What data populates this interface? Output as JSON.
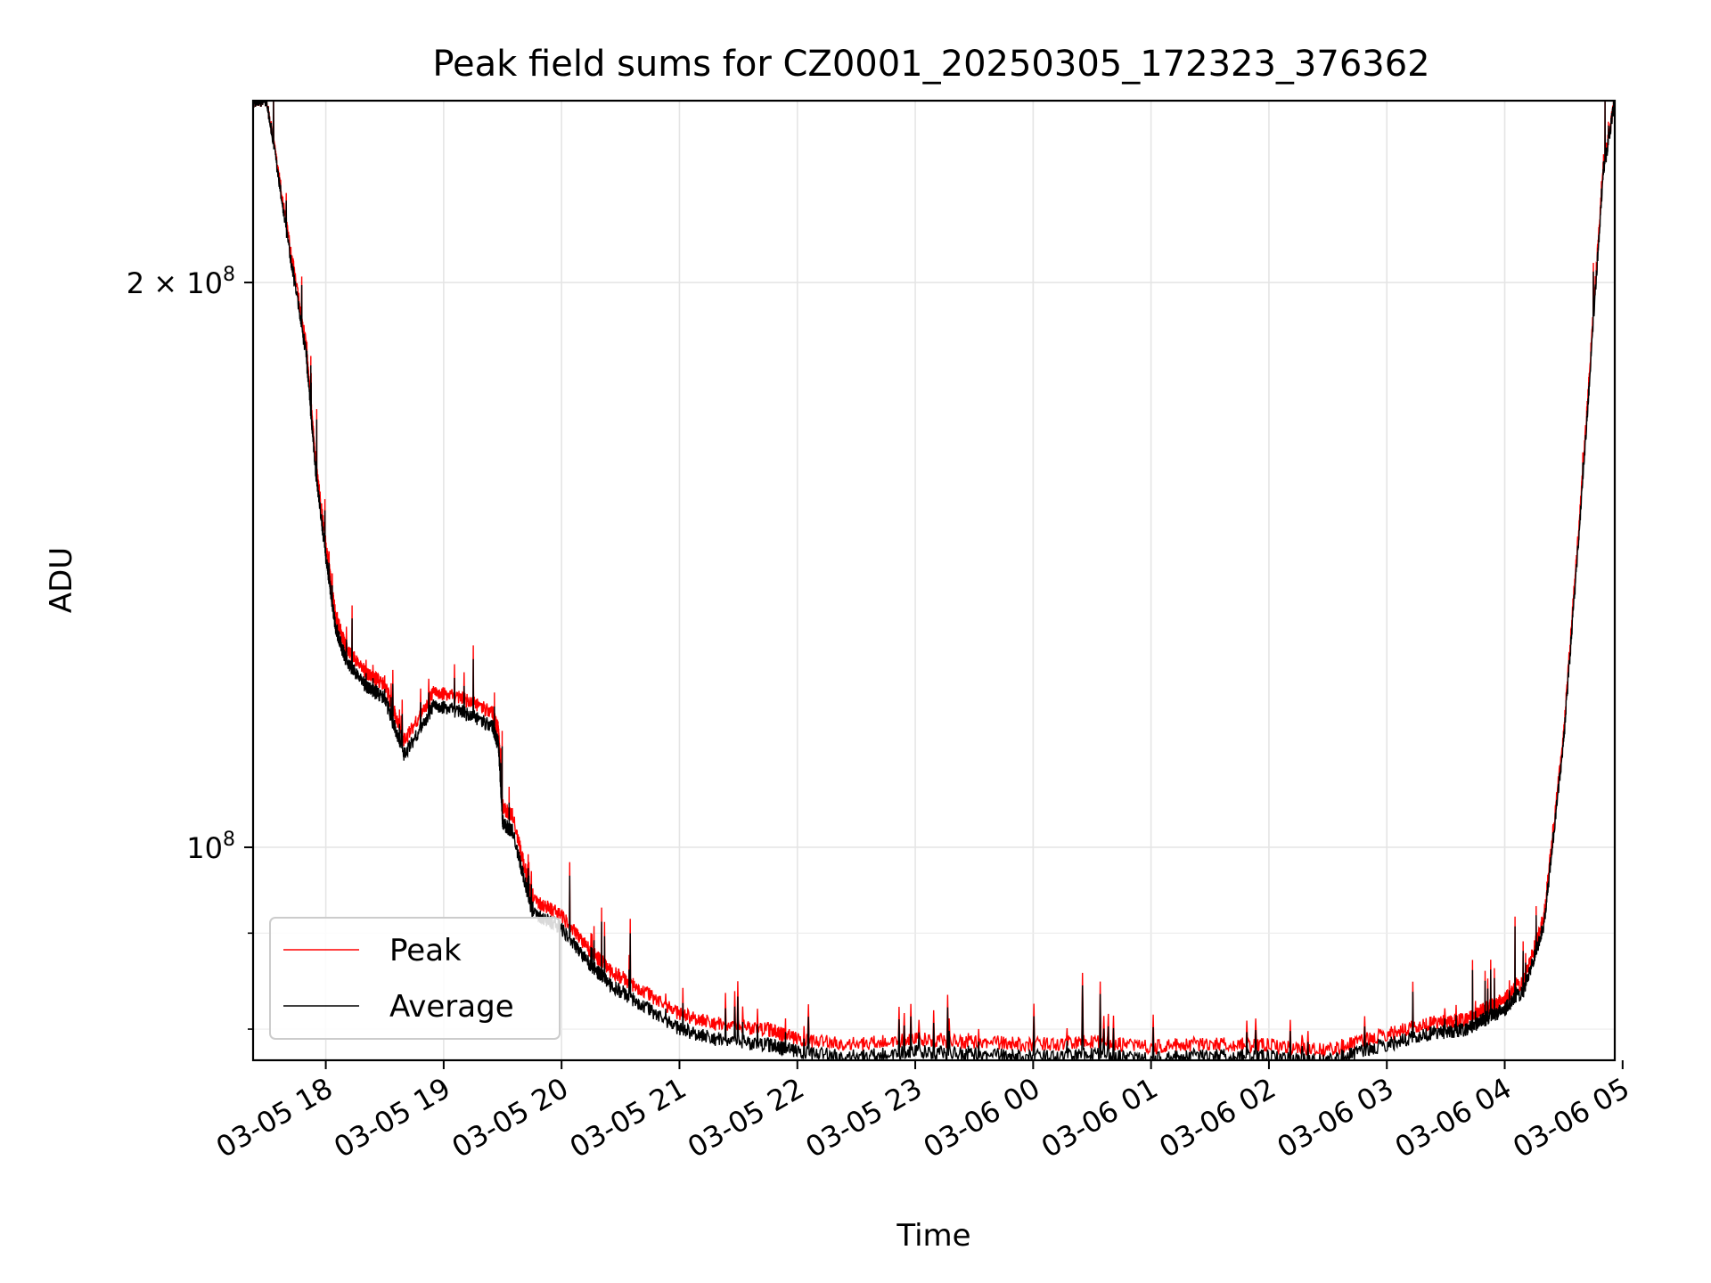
{
  "chart_data": {
    "type": "line",
    "title": "Peak field sums for CZ0001_20250305_172323_376362",
    "xlabel": "Time",
    "ylabel": "ADU",
    "y_scale": "log",
    "ylim": [
      77000000,
      250000000
    ],
    "xlim": [
      "2025-03-05 17:23",
      "2025-03-06 04:56"
    ],
    "x_tick_labels": [
      "03-05 18",
      "03-05 19",
      "03-05 20",
      "03-05 21",
      "03-05 22",
      "03-05 23",
      "03-06 00",
      "03-06 01",
      "03-06 02",
      "03-06 03",
      "03-06 04",
      "03-06 05"
    ],
    "x_tick_times": [
      "2025-03-05 18:00",
      "2025-03-05 19:00",
      "2025-03-05 20:00",
      "2025-03-05 21:00",
      "2025-03-05 22:00",
      "2025-03-05 23:00",
      "2025-03-06 00:00",
      "2025-03-06 01:00",
      "2025-03-06 02:00",
      "2025-03-06 03:00",
      "2025-03-06 04:00",
      "2025-03-06 05:00"
    ],
    "y_major_ticks": [
      {
        "value": 100000000,
        "label": "10^8",
        "mantissa": "10",
        "exp": "8"
      },
      {
        "value": 200000000,
        "label": "2×10^8",
        "mantissa": "2 × 10",
        "exp": "8"
      }
    ],
    "y_minor_ticks": [
      80000000,
      90000000
    ],
    "grid": true,
    "legend_position": "lower-left",
    "series": [
      {
        "name": "Peak",
        "color": "#ff0000",
        "x": [
          "2025-03-05 17:23",
          "2025-03-05 17:30",
          "2025-03-05 17:40",
          "2025-03-05 17:50",
          "2025-03-05 17:55",
          "2025-03-05 18:00",
          "2025-03-05 18:05",
          "2025-03-05 18:10",
          "2025-03-05 18:20",
          "2025-03-05 18:30",
          "2025-03-05 18:40",
          "2025-03-05 18:55",
          "2025-03-05 19:10",
          "2025-03-05 19:25",
          "2025-03-05 19:28",
          "2025-03-05 19:30",
          "2025-03-05 19:35",
          "2025-03-05 19:45",
          "2025-03-05 20:00",
          "2025-03-05 20:15",
          "2025-03-05 20:25",
          "2025-03-05 20:40",
          "2025-03-05 21:00",
          "2025-03-05 21:20",
          "2025-03-05 21:45",
          "2025-03-05 22:00",
          "2025-03-05 22:30",
          "2025-03-05 23:00",
          "2025-03-05 23:30",
          "2025-03-06 00:00",
          "2025-03-06 00:30",
          "2025-03-06 01:00",
          "2025-03-06 01:30",
          "2025-03-06 02:00",
          "2025-03-06 02:30",
          "2025-03-06 03:00",
          "2025-03-06 03:20",
          "2025-03-06 03:40",
          "2025-03-06 03:50",
          "2025-03-06 04:00",
          "2025-03-06 04:10",
          "2025-03-06 04:20",
          "2025-03-06 04:30",
          "2025-03-06 04:40",
          "2025-03-06 04:50",
          "2025-03-06 04:56"
        ],
        "y": [
          250000000,
          250000000,
          215000000,
          185000000,
          160000000,
          145000000,
          133000000,
          128000000,
          124000000,
          122000000,
          114000000,
          121000000,
          120000000,
          118000000,
          115000000,
          105000000,
          104000000,
          94000000,
          92000000,
          88000000,
          86000000,
          84000000,
          81500000,
          80500000,
          80000000,
          79000000,
          78500000,
          79000000,
          78700000,
          78500000,
          78800000,
          78300000,
          78600000,
          78400000,
          78000000,
          79500000,
          80500000,
          81000000,
          82000000,
          83000000,
          85000000,
          92000000,
          115000000,
          160000000,
          230000000,
          250000000
        ]
      },
      {
        "name": "Average",
        "color": "#000000",
        "x": [
          "2025-03-05 17:23",
          "2025-03-05 17:30",
          "2025-03-05 17:40",
          "2025-03-05 17:50",
          "2025-03-05 17:55",
          "2025-03-05 18:00",
          "2025-03-05 18:05",
          "2025-03-05 18:10",
          "2025-03-05 18:20",
          "2025-03-05 18:30",
          "2025-03-05 18:40",
          "2025-03-05 18:55",
          "2025-03-05 19:10",
          "2025-03-05 19:25",
          "2025-03-05 19:28",
          "2025-03-05 19:30",
          "2025-03-05 19:35",
          "2025-03-05 19:45",
          "2025-03-05 20:00",
          "2025-03-05 20:15",
          "2025-03-05 20:25",
          "2025-03-05 20:40",
          "2025-03-05 21:00",
          "2025-03-05 21:20",
          "2025-03-05 21:45",
          "2025-03-05 22:00",
          "2025-03-05 22:30",
          "2025-03-05 23:00",
          "2025-03-05 23:30",
          "2025-03-06 00:00",
          "2025-03-06 00:30",
          "2025-03-06 01:00",
          "2025-03-06 01:30",
          "2025-03-06 02:00",
          "2025-03-06 02:30",
          "2025-03-06 03:00",
          "2025-03-06 03:20",
          "2025-03-06 03:40",
          "2025-03-06 03:50",
          "2025-03-06 04:00",
          "2025-03-06 04:10",
          "2025-03-06 04:20",
          "2025-03-06 04:30",
          "2025-03-06 04:40",
          "2025-03-06 04:50",
          "2025-03-06 04:56"
        ],
        "y": [
          250000000,
          250000000,
          213000000,
          183000000,
          158000000,
          143000000,
          131000000,
          126000000,
          122000000,
          120000000,
          112000000,
          119000000,
          118000000,
          116000000,
          113000000,
          103000000,
          102000000,
          92500000,
          90500000,
          86500000,
          84500000,
          82500000,
          80000000,
          79000000,
          78500000,
          77800000,
          77300000,
          77800000,
          77500000,
          77300000,
          77600000,
          77100000,
          77500000,
          77300000,
          77000000,
          78500000,
          79500000,
          80000000,
          81000000,
          82000000,
          84000000,
          91000000,
          114000000,
          158000000,
          228000000,
          250000000
        ]
      }
    ]
  }
}
